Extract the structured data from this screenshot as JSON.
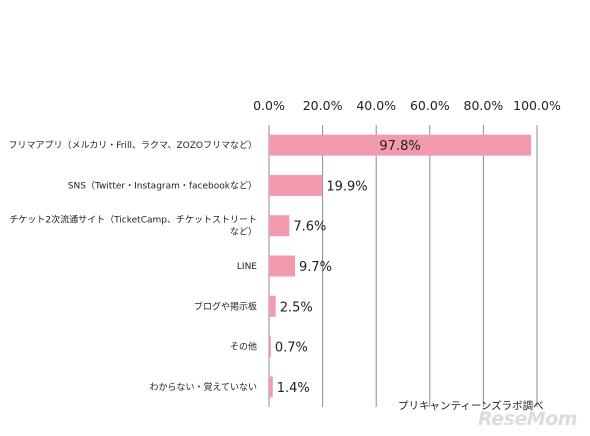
{
  "chart_data": {
    "type": "bar",
    "orientation": "horizontal",
    "categories": [
      [
        "フリマアプリ（メルカリ・Frill、ラクマ、ZOZOフリマなど）"
      ],
      [
        "SNS（Twitter・Instagram・facebookなど）"
      ],
      [
        "チケット2次流通サイト（TicketCamp、チケットストリート",
        "など）"
      ],
      [
        "LINE"
      ],
      [
        "ブログや掲示板"
      ],
      [
        "その他"
      ],
      [
        "わからない・覚えていない"
      ]
    ],
    "values": [
      97.8,
      19.9,
      7.6,
      9.7,
      2.5,
      0.7,
      1.4
    ],
    "value_labels": [
      "97.8%",
      "19.9%",
      "7.6%",
      "9.7%",
      "2.5%",
      "0.7%",
      "1.4%"
    ],
    "x_ticks": [
      "0.0%",
      "20.0%",
      "40.0%",
      "60.0%",
      "80.0%",
      "100.0%"
    ],
    "xlim": [
      0,
      100
    ],
    "x_axis_position": "top",
    "grid": true,
    "bar_color": "#f29aae",
    "grid_color": "#8c8c8c"
  },
  "source": "プリキャンティーンズラボ調べ",
  "logo": "ReseMom"
}
